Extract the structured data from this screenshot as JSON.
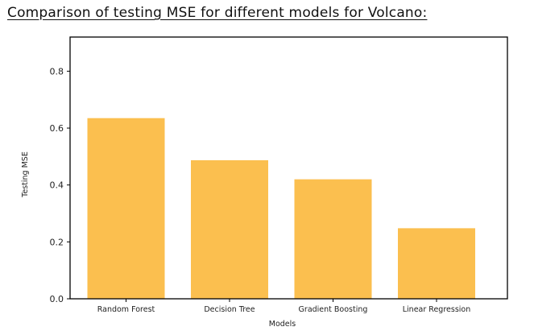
{
  "page": {
    "heading": "Comparison of testing MSE for different models for Volcano:"
  },
  "chart_data": {
    "type": "bar",
    "title": "",
    "xlabel": "Models",
    "ylabel": "Testing MSE",
    "categories": [
      "Random Forest",
      "Decision Tree",
      "Gradient Boosting",
      "Linear Regression"
    ],
    "values": [
      0.635,
      0.487,
      0.42,
      0.248
    ],
    "ylim": [
      0.0,
      0.92
    ],
    "yticks": [
      0.0,
      0.2,
      0.4,
      0.6,
      0.8
    ],
    "ytick_labels": [
      "0.0",
      "0.2",
      "0.4",
      "0.6",
      "0.8"
    ],
    "bar_color": "#fbbf4f",
    "grid": false,
    "legend": "none"
  }
}
